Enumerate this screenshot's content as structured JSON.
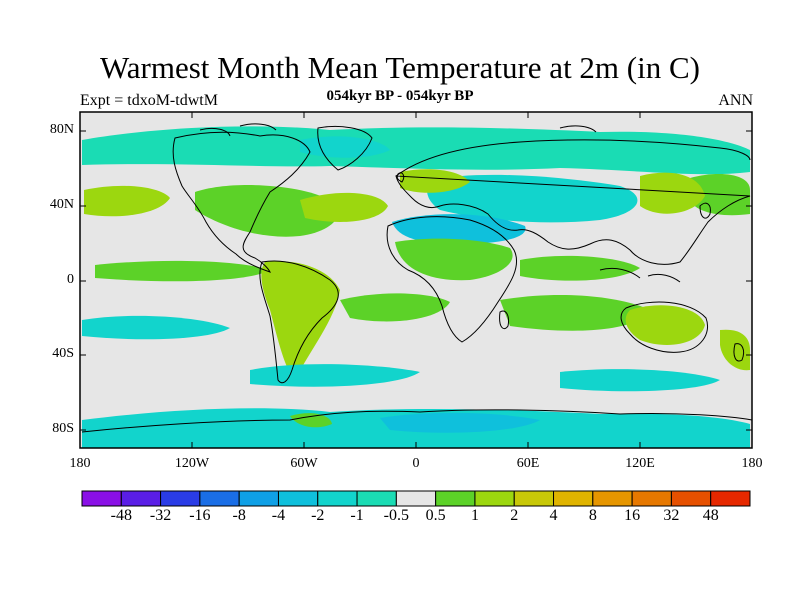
{
  "title": "Warmest Month Mean Temperature at 2m (in C)",
  "subtitle": "054kyr BP - 054kyr BP",
  "left_label": "Expt = tdxoM-tdwtM",
  "right_label": "ANN",
  "lat_ticks": [
    "80N",
    "40N",
    "0",
    "40S",
    "80S"
  ],
  "lon_ticks": [
    "180",
    "120W",
    "60W",
    "0",
    "60E",
    "120E",
    "180"
  ],
  "colorbar": {
    "labels": [
      "-48",
      "-32",
      "-16",
      "-8",
      "-4",
      "-2",
      "-1",
      "-0.5",
      "0.5",
      "1",
      "2",
      "4",
      "8",
      "16",
      "32",
      "48"
    ],
    "colors": [
      "#8a10e6",
      "#5a1ee6",
      "#2a3ce6",
      "#1a6ee6",
      "#0fa0e6",
      "#0fc0dc",
      "#12d4cc",
      "#1adcb4",
      "#e6e6e6",
      "#5cd228",
      "#9cd70f",
      "#c8c808",
      "#e0b400",
      "#e69600",
      "#e67800",
      "#e65000",
      "#e62800"
    ]
  },
  "map_colors": {
    "background": "#e6e6e6",
    "cool_light": "#1adcb4",
    "cool_mid": "#12d4cc",
    "cool_strong": "#0fc0dc",
    "warm_light": "#5cd228",
    "warm_mid": "#9cd70f"
  }
}
